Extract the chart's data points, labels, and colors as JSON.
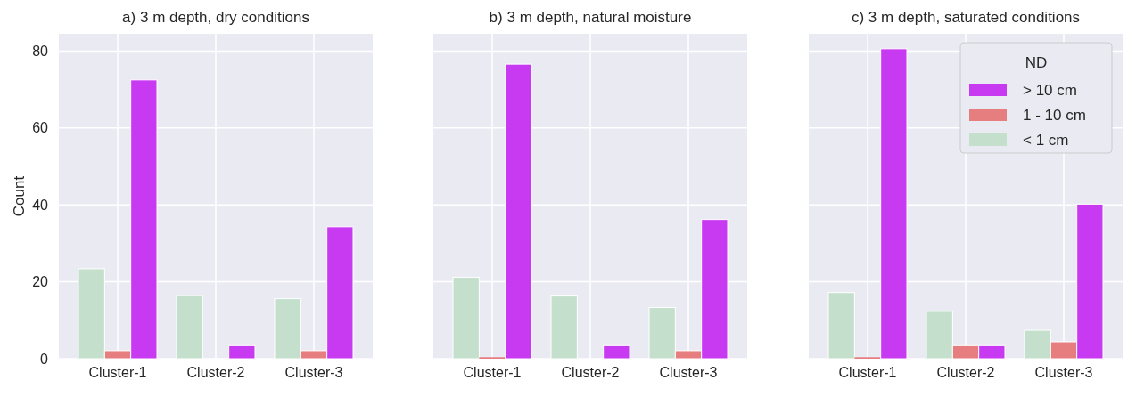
{
  "chart_data": [
    {
      "type": "bar",
      "title": "a) 3 m depth, dry conditions",
      "ylabel": "Count",
      "categories": [
        "Cluster-1",
        "Cluster-2",
        "Cluster-3"
      ],
      "ylim": [
        0,
        84.5
      ],
      "yticks": [
        0,
        20,
        40,
        60,
        80
      ],
      "grid": true,
      "legend": false,
      "series": [
        {
          "color": "#c4dfcc",
          "values": [
            23.4,
            16.4,
            15.6
          ]
        },
        {
          "color": "#e67e80",
          "values": [
            2.1,
            null,
            2.1
          ]
        },
        {
          "color": "#c83af2",
          "values": [
            72.5,
            3.4,
            34.3
          ]
        }
      ]
    },
    {
      "type": "bar",
      "title": "b) 3 m depth, natural moisture",
      "categories": [
        "Cluster-1",
        "Cluster-2",
        "Cluster-3"
      ],
      "ylim": [
        0,
        84.5
      ],
      "yticks": [
        0,
        20,
        40,
        60,
        80
      ],
      "tick_labels": "x",
      "grid": true,
      "legend": false,
      "series": [
        {
          "color": "#c4dfcc",
          "values": [
            21.2,
            16.3,
            13.3
          ]
        },
        {
          "color": "#e67e80",
          "values": [
            0.4,
            null,
            2.1
          ]
        },
        {
          "color": "#c83af2",
          "values": [
            76.6,
            3.4,
            36.2
          ]
        }
      ]
    },
    {
      "type": "bar",
      "title": "c) 3 m depth, saturated conditions",
      "categories": [
        "Cluster-1",
        "Cluster-2",
        "Cluster-3"
      ],
      "ylim": [
        0,
        84.5
      ],
      "yticks": [
        0,
        20,
        40,
        60,
        80
      ],
      "tick_labels": "x",
      "grid": true,
      "legend": "top right",
      "legend_title": "ND",
      "series": [
        {
          "name": "< 1 cm",
          "color": "#c4dfcc",
          "values": [
            17.2,
            12.3,
            7.4
          ]
        },
        {
          "name": "1 - 10 cm",
          "color": "#e67e80",
          "values": [
            0.4,
            3.4,
            4.4
          ]
        },
        {
          "name": "> 10 cm",
          "color": "#c83af2",
          "values": [
            80.6,
            3.4,
            40.2
          ]
        }
      ]
    }
  ]
}
